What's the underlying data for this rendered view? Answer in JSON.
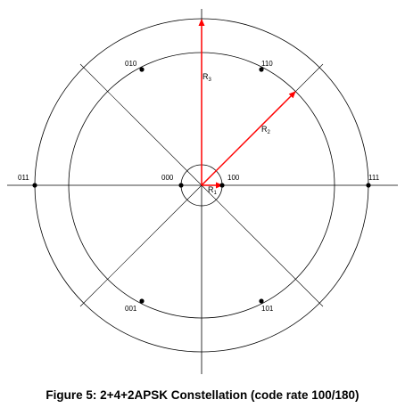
{
  "caption": "Figure 5: 2+4+2APSK Constellation (code rate 100/180)",
  "colors": {
    "lines": "#000000",
    "vectors": "#ff0000"
  },
  "radius_labels": {
    "r1": {
      "base": "R",
      "sub": "1"
    },
    "r2": {
      "base": "R",
      "sub": "2"
    },
    "r3": {
      "base": "R",
      "sub": "3"
    }
  },
  "points": [
    {
      "label": "000"
    },
    {
      "label": "100"
    },
    {
      "label": "010"
    },
    {
      "label": "110"
    },
    {
      "label": "001"
    },
    {
      "label": "101"
    },
    {
      "label": "011"
    },
    {
      "label": "111"
    }
  ]
}
